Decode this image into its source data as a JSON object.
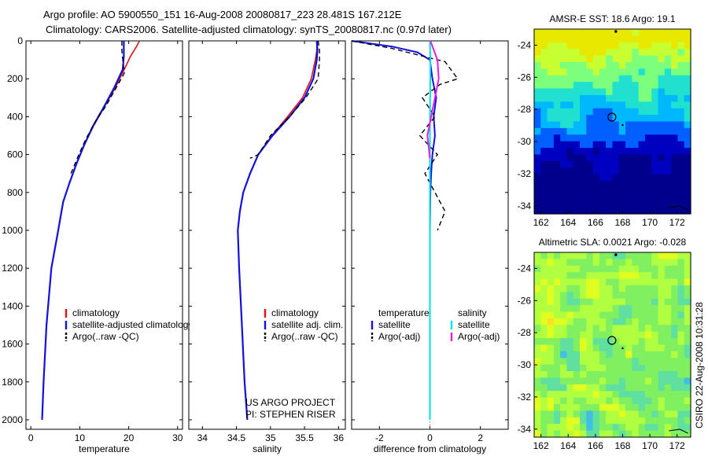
{
  "header": {
    "line1": "Argo profile: AO 5900550_151 16-Aug-2008 20080817_223 28.481S 167.212E",
    "line2": "Climatology: CARS2006. Satellite-adjusted climatology: synTS_20080817.nc (0.97d later)"
  },
  "colors": {
    "climatology": "#e01010",
    "satellite": "#1010e0",
    "argo": "#000000",
    "sal_sat": "#00e0e0",
    "sal_argo": "#e020e0"
  },
  "chart_data": [
    {
      "type": "line",
      "xlabel": "temperature",
      "xlim": [
        -1,
        31
      ],
      "ylim": [
        2050,
        0
      ],
      "xticks": [
        0,
        10,
        20,
        30
      ],
      "yticks": [
        0,
        200,
        400,
        600,
        800,
        1000,
        1200,
        1400,
        1600,
        1800,
        2000
      ],
      "legend": [
        "climatology",
        "satellite-adjusted climatology",
        "Argo(..raw -QC)"
      ],
      "legend_position": "lower-right",
      "series": [
        {
          "name": "climatology",
          "x": [
            22.2,
            21.6,
            20.4,
            19.1,
            17.2,
            15.0,
            12.8,
            10.9,
            9.3,
            7.9,
            6.6,
            5.6,
            4.2,
            3.2,
            2.6,
            2.3
          ],
          "y": [
            0,
            30,
            80,
            150,
            250,
            350,
            450,
            550,
            650,
            750,
            850,
            1000,
            1200,
            1500,
            1800,
            2000
          ]
        },
        {
          "name": "satellite-adjusted climatology",
          "x": [
            19.0,
            19.0,
            19.0,
            18.8,
            17.0,
            14.9,
            12.7,
            10.9,
            9.3,
            7.9,
            6.6,
            5.6,
            4.2,
            3.2,
            2.6,
            2.3
          ],
          "y": [
            0,
            30,
            80,
            150,
            250,
            350,
            450,
            550,
            650,
            750,
            850,
            1000,
            1200,
            1500,
            1800,
            2000
          ]
        },
        {
          "name": "Argo(..raw -QC)",
          "x": [
            18.6,
            18.6,
            18.8,
            19.1,
            17.4,
            15.2,
            13.3,
            11.2,
            9.8,
            8.2
          ],
          "y": [
            0,
            50,
            100,
            170,
            250,
            350,
            420,
            520,
            600,
            700
          ]
        }
      ]
    },
    {
      "type": "line",
      "xlabel": "salinity",
      "xlim": [
        33.8,
        36.1
      ],
      "ylim": [
        2050,
        0
      ],
      "xticks": [
        34,
        34.5,
        35,
        35.5,
        36
      ],
      "yticks": [
        0,
        200,
        400,
        600,
        800,
        1000,
        1200,
        1400,
        1600,
        1800,
        2000
      ],
      "legend": [
        "climatology",
        "satellite adj. clim.",
        "Argo(..raw -QC)"
      ],
      "legend_position": "lower-right",
      "annotations": [
        "US ARGO PROJECT",
        "PI: STEPHEN RISER"
      ],
      "series": [
        {
          "name": "climatology",
          "x": [
            35.68,
            35.68,
            35.66,
            35.6,
            35.47,
            35.25,
            35.02,
            34.82,
            34.7,
            34.6,
            34.55,
            34.52,
            34.54,
            34.58,
            34.62,
            34.66
          ],
          "y": [
            0,
            50,
            100,
            200,
            300,
            400,
            500,
            600,
            700,
            800,
            900,
            1000,
            1200,
            1500,
            1800,
            2000
          ]
        },
        {
          "name": "satellite adj. clim.",
          "x": [
            35.68,
            35.69,
            35.68,
            35.63,
            35.5,
            35.28,
            35.03,
            34.82,
            34.7,
            34.6,
            34.55,
            34.52,
            34.54,
            34.58,
            34.62,
            34.66
          ],
          "y": [
            0,
            50,
            100,
            200,
            300,
            400,
            500,
            600,
            700,
            800,
            900,
            1000,
            1200,
            1500,
            1800,
            2000
          ]
        },
        {
          "name": "Argo(..raw -QC)",
          "x": [
            35.7,
            35.72,
            35.72,
            35.7,
            35.52,
            35.28,
            35.0,
            34.82,
            34.7
          ],
          "y": [
            0,
            50,
            100,
            200,
            300,
            400,
            500,
            600,
            620
          ]
        }
      ]
    },
    {
      "type": "line",
      "xlabel": "difference from climatology",
      "xlim": [
        -3.1,
        3.1
      ],
      "ylim": [
        2050,
        0
      ],
      "xticks": [
        -2,
        0,
        2
      ],
      "yticks": [
        0,
        200,
        400,
        600,
        800,
        1000,
        1200,
        1400,
        1600,
        1800,
        2000
      ],
      "legend": [
        "temperature",
        "satellite",
        "Argo(-adj)",
        "salinity",
        "satellite",
        "Argo(-adj)"
      ],
      "legend_position": "lower-center",
      "series": [
        {
          "name": "satellite",
          "x": [
            -3.1,
            -1.5,
            -0.5,
            0.0,
            0.1,
            0.25,
            0.15,
            0.2,
            0.1,
            0.05,
            0.02,
            0.0,
            0.0,
            0.0
          ],
          "y": [
            0,
            30,
            60,
            100,
            200,
            300,
            400,
            500,
            600,
            700,
            800,
            1000,
            1500,
            2000
          ]
        },
        {
          "name": "Argo(-adj)",
          "x": [
            -3.1,
            -1.5,
            0.6,
            1.1,
            0.4,
            -0.3,
            0.2,
            -0.4,
            0.3,
            -0.2,
            0.6,
            0.3
          ],
          "y": [
            0,
            40,
            110,
            200,
            230,
            300,
            400,
            500,
            600,
            700,
            900,
            1000
          ]
        },
        {
          "name": "satellite",
          "x": [
            0.0,
            0.02,
            0.0,
            0.0,
            0.0
          ],
          "y": [
            0,
            100,
            500,
            1000,
            2000
          ]
        },
        {
          "name": "Argo(-adj)",
          "x": [
            0.02,
            0.3,
            0.35,
            0.2,
            -0.1,
            0.0
          ],
          "y": [
            0,
            100,
            200,
            300,
            500,
            620
          ]
        }
      ]
    },
    {
      "type": "heatmap",
      "title": "AMSR-E SST: 18.6 Argo: 19.1",
      "xlim": [
        161.5,
        173
      ],
      "ylim": [
        -34.5,
        -23
      ],
      "xticks": [
        162,
        164,
        166,
        168,
        170,
        172
      ],
      "yticks": [
        -24,
        -26,
        -28,
        -30,
        -32,
        -34
      ],
      "marker": {
        "x": 167.212,
        "y": -28.481
      }
    },
    {
      "type": "heatmap",
      "title": "Altimetric SLA: 0.0021 Argo: -0.028",
      "xlim": [
        161.5,
        173
      ],
      "ylim": [
        -34.5,
        -23
      ],
      "xticks": [
        162,
        164,
        166,
        168,
        170,
        172
      ],
      "yticks": [
        -24,
        -26,
        -28,
        -30,
        -32,
        -34
      ],
      "marker": {
        "x": 167.212,
        "y": -28.481
      }
    }
  ],
  "side_label": "CSIRO 22-Aug-2008 10:31:28"
}
